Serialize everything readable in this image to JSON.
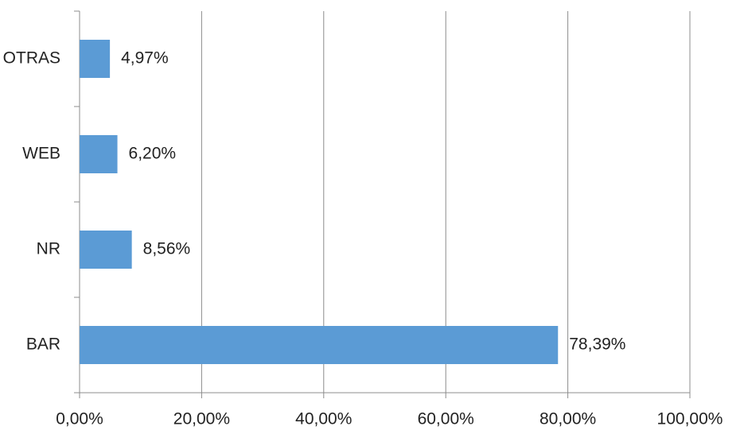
{
  "chart_data": {
    "type": "bar",
    "orientation": "horizontal",
    "categories": [
      "BAR",
      "NR",
      "WEB",
      "OTRAS"
    ],
    "values": [
      78.39,
      8.56,
      6.2,
      4.97
    ],
    "value_labels": [
      "78,39%",
      "8,56%",
      "6,20%",
      "4,97%"
    ],
    "color": "#5b9bd5",
    "xlim": [
      0,
      100
    ],
    "xticks": [
      {
        "value": 0,
        "label": "0,00%"
      },
      {
        "value": 20,
        "label": "20,00%"
      },
      {
        "value": 40,
        "label": "40,00%"
      },
      {
        "value": 60,
        "label": "60,00%"
      },
      {
        "value": 80,
        "label": "80,00%"
      },
      {
        "value": 100,
        "label": "100,00%"
      }
    ],
    "grid": true
  }
}
